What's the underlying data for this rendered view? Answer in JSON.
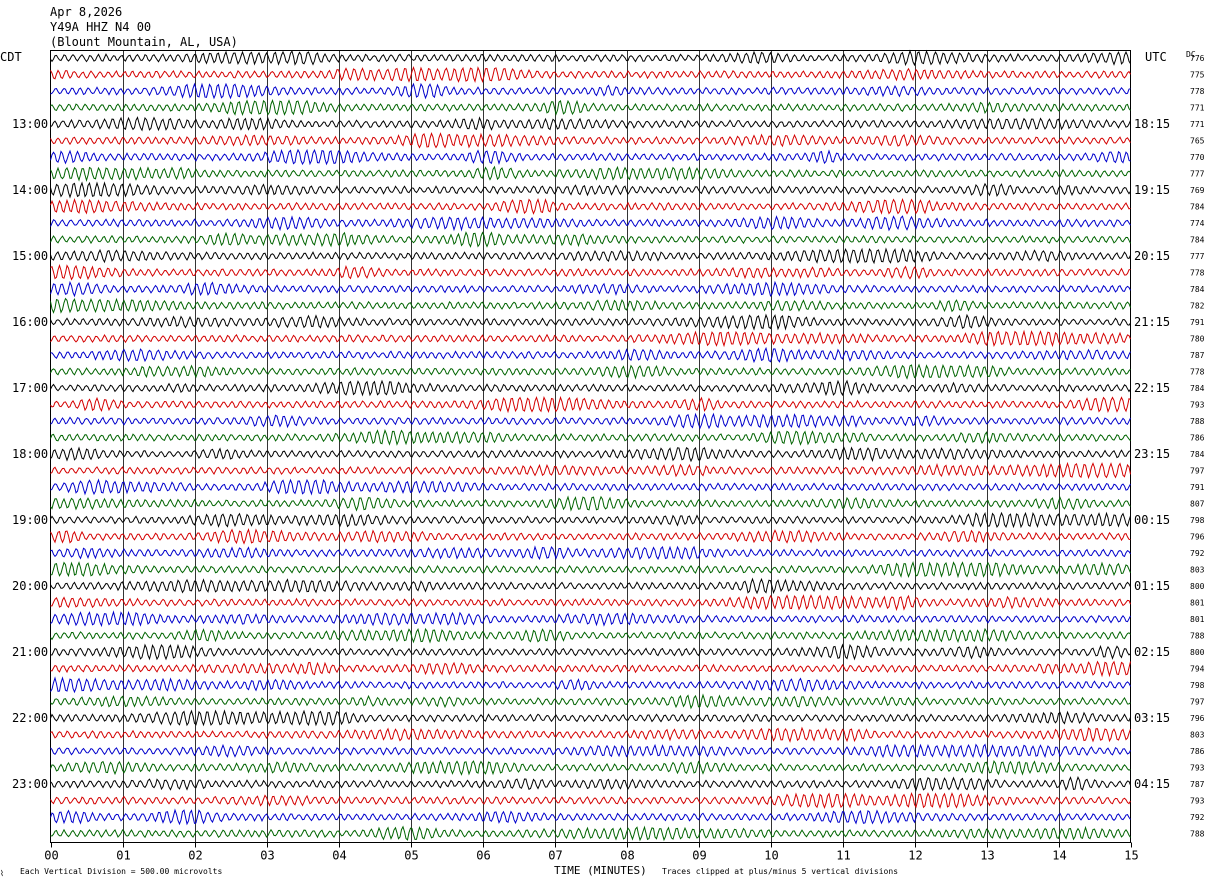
{
  "header": {
    "date": "Apr 8,2026",
    "station": "Y49A HHZ N4 00",
    "location": "(Blount Mountain, AL, USA)"
  },
  "left_timezone": "CDT",
  "right_timezone": "UTC",
  "dc_header": "DC",
  "footer": {
    "scale_note": "Each Vertical Division =  500.00 microvolts",
    "clip_note": "Traces clipped at plus/minus 5 vertical divisions",
    "corner_mark": "⌇"
  },
  "colors": {
    "trace_cycle": [
      "#000000",
      "#d40000",
      "#0000cc",
      "#006400"
    ],
    "grid": "#000000"
  },
  "chart_data": {
    "type": "line",
    "xlabel": "TIME (MINUTES)",
    "x_ticks": [
      "00",
      "01",
      "02",
      "03",
      "04",
      "05",
      "06",
      "07",
      "08",
      "09",
      "10",
      "11",
      "12",
      "13",
      "14",
      "15"
    ],
    "xlim": [
      0,
      15
    ],
    "rows_per_hour": 4,
    "left_hour_labels": [
      "13:00",
      "14:00",
      "15:00",
      "16:00",
      "17:00",
      "18:00",
      "19:00",
      "20:00",
      "21:00",
      "22:00",
      "23:00"
    ],
    "right_hour_labels": [
      "18:15",
      "19:15",
      "20:15",
      "21:15",
      "22:15",
      "23:15",
      "00:15",
      "01:15",
      "02:15",
      "03:15",
      "04:15"
    ],
    "dc_offsets": [
      776,
      775,
      778,
      771,
      771,
      765,
      770,
      777,
      769,
      784,
      774,
      784,
      777,
      778,
      784,
      782,
      791,
      780,
      787,
      778,
      784,
      793,
      788,
      786,
      784,
      797,
      791,
      807,
      798,
      796,
      792,
      803,
      800,
      801,
      801,
      788,
      800,
      794,
      798,
      797,
      796,
      803,
      786,
      793,
      787,
      793,
      792,
      788
    ],
    "grid": true
  }
}
